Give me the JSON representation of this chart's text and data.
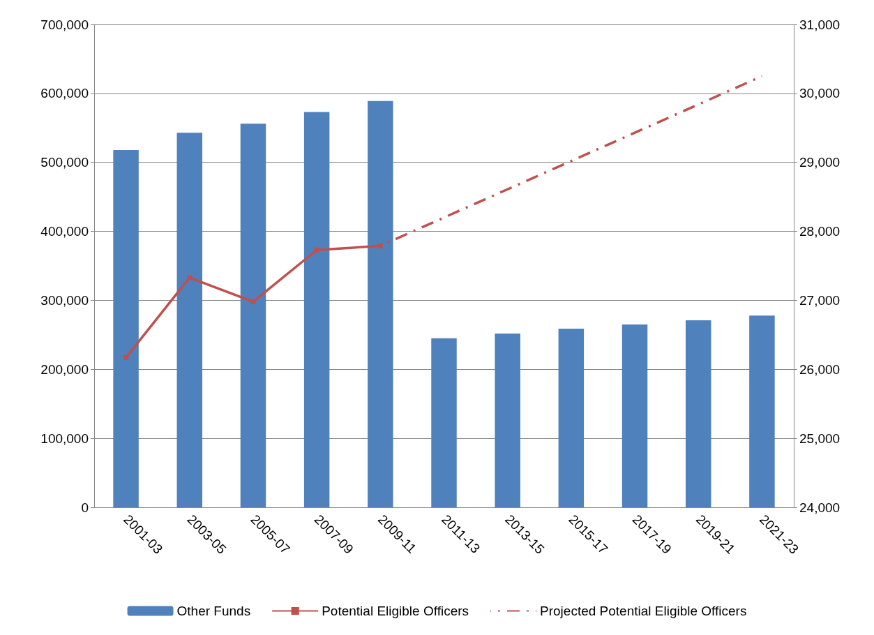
{
  "chart_data": {
    "type": "bar",
    "categories": [
      "2001-03",
      "2003-05",
      "2005-07",
      "2007-09",
      "2009-11",
      "2011-13",
      "2013-15",
      "2015-17",
      "2017-19",
      "2019-21",
      "2021-23"
    ],
    "series": [
      {
        "name": "Other Funds",
        "color": "#4f81bd",
        "values": [
          518000,
          543000,
          556000,
          573000,
          589000,
          245000,
          252000,
          259000,
          265000,
          271000,
          278000
        ]
      },
      {
        "name": "Potential Eligible Officers",
        "type": "line",
        "axis": "y2",
        "color": "#c0504d",
        "marker": "square",
        "line_style": "solid",
        "values": [
          26170,
          27330,
          26980,
          27730,
          27790,
          null,
          null,
          null,
          null,
          null,
          null
        ]
      },
      {
        "name": "Projected Potential Eligible Officers",
        "type": "line",
        "axis": "y2",
        "color": "#c0504d",
        "marker": "none",
        "line_style": "dashed",
        "values": [
          null,
          null,
          null,
          null,
          27790,
          28200,
          28610,
          29020,
          29430,
          29840,
          30250
        ]
      }
    ],
    "ylim": [
      0,
      700000
    ],
    "yticks": [
      0,
      {
        "value": 100000,
        "label": "100,000"
      },
      {
        "value": 200000,
        "label": "200,000"
      },
      {
        "value": 300000,
        "label": "300,000"
      },
      {
        "value": 400000,
        "label": "400,000"
      },
      {
        "value": 500000,
        "label": "500,000"
      },
      {
        "value": 600000,
        "label": "600,000"
      },
      {
        "value": 700000,
        "label": "700,000"
      }
    ],
    "y2lim": [
      24000,
      31000
    ],
    "y2ticks": [
      {
        "value": 24000,
        "label": "24,000"
      },
      {
        "value": 25000,
        "label": "25,000"
      },
      {
        "value": 26000,
        "label": "26,000"
      },
      {
        "value": 27000,
        "label": "27,000"
      },
      {
        "value": 28000,
        "label": "28,000"
      },
      {
        "value": 29000,
        "label": "29,000"
      },
      {
        "value": 30000,
        "label": "30,000"
      },
      {
        "value": 31000,
        "label": "31,000"
      }
    ],
    "grid": "y",
    "legend": "bottom"
  }
}
